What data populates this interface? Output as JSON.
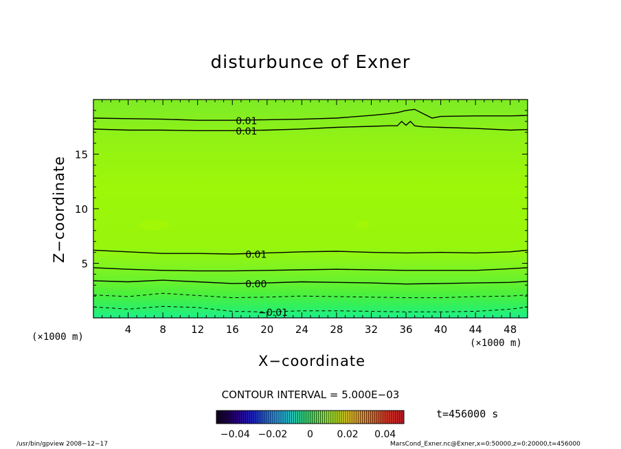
{
  "chart_data": {
    "type": "contour",
    "title": "disturbunce of Exner",
    "xlabel": "X−coordinate",
    "ylabel": "Z−coordinate",
    "x_unit": "(×1000 m)",
    "y_unit": "(×1000 m)",
    "xlim": [
      0,
      50
    ],
    "ylim": [
      0,
      20
    ],
    "x_ticks": [
      4,
      8,
      12,
      16,
      20,
      24,
      28,
      32,
      36,
      40,
      44,
      48
    ],
    "y_ticks": [
      5,
      10,
      15
    ],
    "contour_interval": "CONTOUR INTERVAL = 5.000E−03",
    "contours": [
      {
        "label": "0.01",
        "style": "solid",
        "x": [
          0,
          4,
          8,
          12,
          16,
          20,
          24,
          28,
          32,
          34,
          35,
          36,
          37,
          38,
          39,
          40,
          44,
          48,
          50
        ],
        "z": [
          18.3,
          18.25,
          18.2,
          18.1,
          18.1,
          18.15,
          18.2,
          18.3,
          18.55,
          18.7,
          18.8,
          19.0,
          19.1,
          18.7,
          18.3,
          18.45,
          18.5,
          18.5,
          18.55
        ]
      },
      {
        "label": "0.01",
        "style": "solid",
        "x": [
          0,
          4,
          8,
          12,
          16,
          20,
          24,
          28,
          32,
          34,
          35,
          35.5,
          36,
          36.5,
          37,
          38,
          40,
          44,
          48,
          50
        ],
        "z": [
          17.3,
          17.2,
          17.2,
          17.15,
          17.15,
          17.2,
          17.3,
          17.45,
          17.55,
          17.6,
          17.6,
          18.0,
          17.65,
          18.0,
          17.6,
          17.5,
          17.45,
          17.35,
          17.2,
          17.25
        ]
      },
      {
        "label": "0.01",
        "style": "solid",
        "x": [
          0,
          4,
          8,
          12,
          16,
          20,
          24,
          28,
          32,
          36,
          40,
          44,
          48,
          50
        ],
        "z": [
          6.2,
          6.05,
          5.9,
          5.9,
          5.85,
          5.95,
          6.05,
          6.1,
          6.0,
          5.95,
          6.0,
          5.95,
          6.05,
          6.2
        ]
      },
      {
        "label": "",
        "style": "solid",
        "x": [
          0,
          4,
          8,
          12,
          16,
          20,
          24,
          28,
          32,
          36,
          40,
          44,
          48,
          50
        ],
        "z": [
          4.6,
          4.45,
          4.35,
          4.3,
          4.3,
          4.35,
          4.4,
          4.45,
          4.4,
          4.35,
          4.35,
          4.35,
          4.5,
          4.6
        ]
      },
      {
        "label": "0.00",
        "style": "solid",
        "x": [
          0,
          4,
          8,
          12,
          16,
          20,
          24,
          28,
          32,
          36,
          40,
          44,
          48,
          50
        ],
        "z": [
          3.4,
          3.3,
          3.45,
          3.3,
          3.15,
          3.2,
          3.3,
          3.25,
          3.2,
          3.1,
          3.15,
          3.2,
          3.25,
          3.35
        ]
      },
      {
        "label": "",
        "style": "dashed",
        "x": [
          0,
          4,
          8,
          12,
          16,
          20,
          24,
          28,
          32,
          36,
          40,
          44,
          48,
          50
        ],
        "z": [
          2.1,
          1.95,
          2.25,
          2.05,
          1.85,
          1.9,
          2.0,
          1.95,
          1.9,
          1.85,
          1.85,
          1.95,
          2.0,
          2.1
        ]
      },
      {
        "label": "−0.01",
        "style": "dashed",
        "x": [
          0,
          4,
          8,
          12,
          16,
          20,
          24,
          28,
          32,
          36,
          40,
          44,
          48,
          50
        ],
        "z": [
          1.0,
          0.8,
          1.05,
          0.95,
          0.6,
          0.55,
          0.65,
          0.65,
          0.6,
          0.55,
          0.55,
          0.6,
          0.8,
          1.0
        ]
      }
    ],
    "colorbar": {
      "ticks": [
        "−0.04",
        "−0.02",
        "0",
        "0.02",
        "0.04"
      ],
      "range": [
        -0.05,
        0.05
      ]
    }
  },
  "time_label": "t=456000 s",
  "footer": {
    "left": "/usr/bin/gpview   2008−12−17",
    "right": "MarsCond_Exner.nc@Exner,x=0:50000,z=0:20000,t=456000"
  },
  "colors": {
    "band_low": "#1ef08a",
    "band_mid": "#7af22a",
    "band_main": "#9af50a",
    "band_high": "#8ef01c"
  }
}
